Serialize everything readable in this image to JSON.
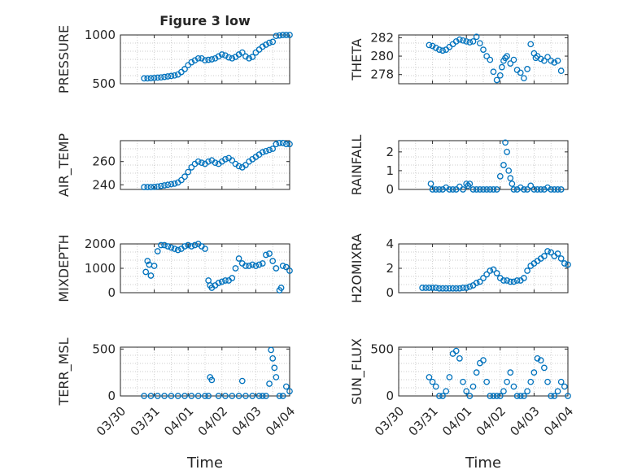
{
  "figure": {
    "title": "Figure 3 low",
    "xlabel_left": "Time",
    "xlabel_right": "Time",
    "colors": {
      "marker": "#0072BD",
      "axis": "#262626",
      "grid": "#bdbdbd"
    }
  },
  "chart_data": [
    {
      "type": "scatter",
      "ylabel": "PRESSURE",
      "ylim": [
        500,
        1000
      ],
      "yticks": [
        500,
        1000
      ],
      "xlim": [
        0,
        5
      ],
      "xticks": [],
      "grid": true,
      "series": [
        {
          "x": [
            0.7,
            0.8,
            0.9,
            1.0,
            1.1,
            1.2,
            1.3,
            1.4,
            1.5,
            1.6,
            1.7,
            1.8,
            1.9,
            2.0,
            2.1,
            2.2,
            2.3,
            2.4,
            2.5,
            2.6,
            2.7,
            2.8,
            2.9,
            3.0,
            3.1,
            3.2,
            3.3,
            3.4,
            3.5,
            3.6,
            3.7,
            3.8,
            3.9,
            4.0,
            4.1,
            4.2,
            4.3,
            4.4,
            4.5,
            4.6,
            4.7,
            4.8,
            4.9,
            5.0
          ],
          "y": [
            555,
            555,
            557,
            560,
            563,
            565,
            570,
            575,
            580,
            585,
            595,
            620,
            650,
            690,
            720,
            740,
            760,
            760,
            740,
            745,
            750,
            760,
            780,
            800,
            790,
            770,
            760,
            775,
            800,
            820,
            780,
            760,
            775,
            820,
            850,
            880,
            900,
            920,
            930,
            990,
            995,
            1000,
            1000,
            1000
          ]
        }
      ]
    },
    {
      "type": "scatter",
      "ylabel": "THETA",
      "ylim": [
        277,
        282.3
      ],
      "yticks": [
        278,
        280,
        282
      ],
      "xlim": [
        0,
        5
      ],
      "xticks": [],
      "grid": true,
      "series": [
        {
          "x": [
            0.9,
            1.0,
            1.1,
            1.2,
            1.3,
            1.4,
            1.5,
            1.6,
            1.7,
            1.8,
            1.9,
            2.0,
            2.1,
            2.2,
            2.3,
            2.4,
            2.5,
            2.6,
            2.7,
            2.8,
            2.9,
            3.0,
            3.05,
            3.1,
            3.15,
            3.2,
            3.3,
            3.4,
            3.5,
            3.6,
            3.7,
            3.8,
            3.9,
            4.0,
            4.05,
            4.1,
            4.2,
            4.3,
            4.4,
            4.5,
            4.6,
            4.7,
            4.8
          ],
          "y": [
            281.2,
            281.1,
            280.9,
            280.7,
            280.6,
            280.7,
            281.0,
            281.3,
            281.6,
            281.8,
            281.7,
            281.6,
            281.5,
            281.6,
            282.1,
            281.4,
            280.7,
            280.0,
            279.6,
            278.3,
            277.4,
            277.9,
            278.8,
            279.5,
            279.8,
            280.0,
            279.2,
            279.6,
            278.5,
            278.2,
            277.6,
            278.6,
            281.3,
            280.3,
            279.8,
            280.0,
            279.7,
            279.5,
            279.9,
            279.5,
            279.3,
            279.5,
            278.4
          ]
        }
      ]
    },
    {
      "type": "scatter",
      "ylabel": "AIR_TEMP",
      "ylim": [
        236,
        278
      ],
      "yticks": [
        240,
        260
      ],
      "xlim": [
        0,
        5
      ],
      "xticks": [],
      "grid": true,
      "series": [
        {
          "x": [
            0.7,
            0.8,
            0.9,
            1.0,
            1.1,
            1.2,
            1.3,
            1.4,
            1.5,
            1.6,
            1.7,
            1.8,
            1.9,
            2.0,
            2.1,
            2.2,
            2.3,
            2.4,
            2.5,
            2.6,
            2.7,
            2.8,
            2.9,
            3.0,
            3.1,
            3.2,
            3.3,
            3.4,
            3.5,
            3.6,
            3.7,
            3.8,
            3.9,
            4.0,
            4.1,
            4.2,
            4.3,
            4.4,
            4.5,
            4.6,
            4.7,
            4.8,
            4.9,
            5.0
          ],
          "y": [
            238,
            238,
            238,
            238.2,
            238.5,
            239,
            239.5,
            240,
            240.5,
            241,
            242,
            244,
            247,
            251,
            255,
            258,
            260,
            259,
            258,
            260,
            261,
            259,
            258,
            260,
            262,
            263,
            261,
            258,
            256,
            255,
            257,
            260,
            262,
            264,
            266,
            268,
            269,
            270,
            271,
            275,
            276,
            276,
            275,
            275
          ]
        }
      ]
    },
    {
      "type": "scatter",
      "ylabel": "RAINFALL",
      "ylim": [
        0,
        2.6
      ],
      "yticks": [
        0,
        1,
        2
      ],
      "xlim": [
        0,
        5
      ],
      "xticks": [],
      "grid": true,
      "series": [
        {
          "x": [
            0.95,
            1.0,
            1.1,
            1.2,
            1.3,
            1.4,
            1.5,
            1.6,
            1.7,
            1.8,
            1.9,
            2.0,
            2.05,
            2.1,
            2.2,
            2.3,
            2.4,
            2.5,
            2.6,
            2.7,
            2.8,
            2.9,
            3.0,
            3.1,
            3.15,
            3.2,
            3.25,
            3.3,
            3.35,
            3.4,
            3.5,
            3.6,
            3.7,
            3.8,
            3.9,
            4.0,
            4.1,
            4.2,
            4.3,
            4.4,
            4.5,
            4.6,
            4.7,
            4.8
          ],
          "y": [
            0.3,
            0,
            0,
            0,
            0,
            0.1,
            0,
            0,
            0,
            0.15,
            0,
            0.3,
            0.2,
            0.3,
            0,
            0,
            0,
            0,
            0,
            0,
            0,
            0,
            0.7,
            1.3,
            2.5,
            2.0,
            1.0,
            0.6,
            0.3,
            0,
            0,
            0.1,
            0,
            0,
            0.2,
            0,
            0,
            0,
            0,
            0.1,
            0,
            0,
            0,
            0
          ]
        }
      ]
    },
    {
      "type": "scatter",
      "ylabel": "MIXDEPTH",
      "ylim": [
        0,
        2000
      ],
      "yticks": [
        0,
        1000,
        2000
      ],
      "xlim": [
        0,
        5
      ],
      "xticks": [],
      "grid": true,
      "series": [
        {
          "x": [
            0.75,
            0.8,
            0.85,
            0.9,
            1.0,
            1.1,
            1.2,
            1.3,
            1.4,
            1.5,
            1.6,
            1.7,
            1.8,
            1.9,
            2.0,
            2.1,
            2.2,
            2.3,
            2.4,
            2.5,
            2.6,
            2.65,
            2.7,
            2.8,
            2.9,
            3.0,
            3.1,
            3.2,
            3.3,
            3.4,
            3.5,
            3.6,
            3.7,
            3.8,
            3.9,
            4.0,
            4.1,
            4.2,
            4.3,
            4.4,
            4.5,
            4.6,
            4.7,
            4.75,
            4.8,
            4.9,
            5.0
          ],
          "y": [
            850,
            1300,
            1150,
            700,
            1100,
            1700,
            1950,
            1950,
            1900,
            1850,
            1800,
            1750,
            1800,
            1900,
            1950,
            1900,
            1950,
            2000,
            1900,
            1800,
            500,
            300,
            200,
            300,
            400,
            450,
            500,
            500,
            600,
            1000,
            1400,
            1200,
            1100,
            1100,
            1150,
            1100,
            1150,
            1200,
            1550,
            1600,
            1300,
            1000,
            100,
            200,
            1100,
            1050,
            900
          ]
        }
      ]
    },
    {
      "type": "scatter",
      "ylabel": "H2OMIXRA",
      "ylim": [
        0,
        4
      ],
      "yticks": [
        0,
        2,
        4
      ],
      "xlim": [
        0,
        5
      ],
      "xticks": [],
      "grid": true,
      "series": [
        {
          "x": [
            0.7,
            0.8,
            0.9,
            1.0,
            1.1,
            1.2,
            1.3,
            1.4,
            1.5,
            1.6,
            1.7,
            1.8,
            1.9,
            2.0,
            2.1,
            2.2,
            2.3,
            2.4,
            2.5,
            2.6,
            2.7,
            2.8,
            2.9,
            3.0,
            3.1,
            3.2,
            3.3,
            3.4,
            3.5,
            3.6,
            3.7,
            3.8,
            3.9,
            4.0,
            4.1,
            4.2,
            4.3,
            4.4,
            4.5,
            4.6,
            4.7,
            4.8,
            4.9,
            5.0
          ],
          "y": [
            0.4,
            0.4,
            0.4,
            0.4,
            0.4,
            0.35,
            0.35,
            0.35,
            0.35,
            0.35,
            0.35,
            0.35,
            0.4,
            0.4,
            0.5,
            0.6,
            0.8,
            0.9,
            1.2,
            1.5,
            1.8,
            1.9,
            1.6,
            1.2,
            1.0,
            1.0,
            0.9,
            0.9,
            1.0,
            1.0,
            1.2,
            1.8,
            2.2,
            2.4,
            2.6,
            2.8,
            3.0,
            3.4,
            3.3,
            3.0,
            3.2,
            2.8,
            2.4,
            2.3
          ]
        }
      ]
    },
    {
      "type": "scatter",
      "ylabel": "TERR_MSL",
      "ylim": [
        0,
        520
      ],
      "yticks": [
        0,
        500
      ],
      "xlim": [
        0,
        5
      ],
      "xticks": [
        "03/30",
        "03/31",
        "04/01",
        "04/02",
        "04/03",
        "04/04"
      ],
      "xlabel": "Time",
      "grid": true,
      "series": [
        {
          "x": [
            0.7,
            0.9,
            1.1,
            1.3,
            1.5,
            1.7,
            1.9,
            2.1,
            2.3,
            2.5,
            2.6,
            2.65,
            2.7,
            2.9,
            3.1,
            3.3,
            3.5,
            3.6,
            3.7,
            3.9,
            4.1,
            4.2,
            4.3,
            4.4,
            4.45,
            4.5,
            4.55,
            4.6,
            4.7,
            4.8,
            4.9,
            5.0
          ],
          "y": [
            0,
            0,
            0,
            0,
            0,
            0,
            0,
            0,
            0,
            0,
            0,
            200,
            170,
            0,
            0,
            0,
            0,
            160,
            0,
            0,
            0,
            0,
            0,
            130,
            490,
            400,
            300,
            200,
            0,
            0,
            100,
            50
          ]
        }
      ]
    },
    {
      "type": "scatter",
      "ylabel": "SUN_FLUX",
      "ylim": [
        0,
        520
      ],
      "yticks": [
        0,
        500
      ],
      "xlim": [
        0,
        5
      ],
      "xticks": [
        "03/30",
        "03/31",
        "04/01",
        "04/02",
        "04/03",
        "04/04"
      ],
      "xlabel": "Time",
      "grid": true,
      "series": [
        {
          "x": [
            0.9,
            1.0,
            1.1,
            1.2,
            1.3,
            1.4,
            1.5,
            1.6,
            1.7,
            1.8,
            1.9,
            2.0,
            2.1,
            2.2,
            2.3,
            2.4,
            2.5,
            2.6,
            2.7,
            2.8,
            2.9,
            3.0,
            3.1,
            3.2,
            3.3,
            3.4,
            3.5,
            3.6,
            3.7,
            3.8,
            3.9,
            4.0,
            4.1,
            4.2,
            4.3,
            4.4,
            4.5,
            4.6,
            4.7,
            4.8,
            4.9,
            5.0
          ],
          "y": [
            200,
            150,
            100,
            0,
            0,
            50,
            200,
            450,
            480,
            400,
            150,
            50,
            0,
            100,
            250,
            350,
            380,
            150,
            0,
            0,
            0,
            0,
            50,
            150,
            250,
            100,
            0,
            0,
            0,
            50,
            150,
            250,
            400,
            380,
            300,
            150,
            0,
            0,
            50,
            150,
            100,
            0
          ]
        }
      ]
    }
  ]
}
